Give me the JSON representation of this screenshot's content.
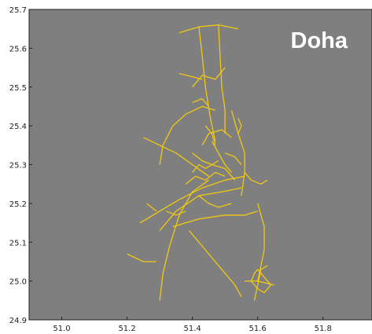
{
  "chart_data": {
    "type": "line",
    "title": "",
    "xlabel": "",
    "ylabel": "",
    "xlim": [
      50.9,
      51.95
    ],
    "ylim": [
      24.9,
      25.7
    ],
    "xticks": [
      51.0,
      51.2,
      51.4,
      51.6,
      51.8
    ],
    "xtick_labels": [
      "51.0",
      "51.2",
      "51.4",
      "51.6",
      "51.8"
    ],
    "yticks": [
      24.9,
      25.0,
      25.1,
      25.2,
      25.3,
      25.4,
      25.5,
      25.6,
      25.7
    ],
    "ytick_labels": [
      "24.9",
      "25.0",
      "25.1",
      "25.2",
      "25.3",
      "25.4",
      "25.5",
      "25.6",
      "25.7"
    ],
    "grid": false,
    "background_color": "#7f7f7f",
    "line_color": "#f2c811",
    "annotation": {
      "text": "Doha",
      "color": "#ffffff",
      "placement": "top-right"
    },
    "series": [
      {
        "values": [
          [
            51.36,
            25.64
          ],
          [
            51.42,
            25.655
          ],
          [
            51.48,
            25.66
          ],
          [
            51.54,
            25.65
          ]
        ]
      },
      {
        "values": [
          [
            51.42,
            25.655
          ],
          [
            51.43,
            25.58
          ],
          [
            51.44,
            25.5
          ],
          [
            51.455,
            25.42
          ],
          [
            51.47,
            25.36
          ]
        ]
      },
      {
        "values": [
          [
            51.48,
            25.66
          ],
          [
            51.485,
            25.58
          ],
          [
            51.49,
            25.5
          ],
          [
            51.5,
            25.44
          ],
          [
            51.5,
            25.38
          ]
        ]
      },
      {
        "values": [
          [
            51.4,
            25.5
          ],
          [
            51.43,
            25.53
          ],
          [
            51.47,
            25.52
          ],
          [
            51.5,
            25.55
          ]
        ]
      },
      {
        "values": [
          [
            51.36,
            25.535
          ],
          [
            51.43,
            25.52
          ]
        ]
      },
      {
        "values": [
          [
            51.4,
            25.46
          ],
          [
            51.43,
            25.47
          ],
          [
            51.45,
            25.45
          ]
        ]
      },
      {
        "values": [
          [
            51.52,
            25.44
          ],
          [
            51.54,
            25.38
          ],
          [
            51.56,
            25.33
          ],
          [
            51.56,
            25.28
          ],
          [
            51.55,
            25.22
          ]
        ]
      },
      {
        "values": [
          [
            51.25,
            25.37
          ],
          [
            51.3,
            25.35
          ],
          [
            51.35,
            25.33
          ],
          [
            51.4,
            25.3
          ],
          [
            51.45,
            25.27
          ]
        ]
      },
      {
        "values": [
          [
            51.24,
            25.15
          ],
          [
            51.3,
            25.18
          ],
          [
            51.36,
            25.21
          ],
          [
            51.43,
            25.24
          ],
          [
            51.5,
            25.26
          ],
          [
            51.56,
            25.27
          ]
        ]
      },
      {
        "values": [
          [
            51.3,
            25.13
          ],
          [
            51.35,
            25.18
          ],
          [
            51.42,
            25.22
          ],
          [
            51.49,
            25.23
          ],
          [
            51.55,
            25.24
          ]
        ]
      },
      {
        "values": [
          [
            51.3,
            24.95
          ],
          [
            51.31,
            25.02
          ],
          [
            51.33,
            25.09
          ],
          [
            51.36,
            25.17
          ],
          [
            51.4,
            25.23
          ],
          [
            51.45,
            25.26
          ]
        ]
      },
      {
        "values": [
          [
            51.3,
            25.3
          ],
          [
            51.31,
            25.35
          ],
          [
            51.34,
            25.4
          ],
          [
            51.38,
            25.43
          ],
          [
            51.43,
            25.45
          ],
          [
            51.47,
            25.44
          ]
        ]
      },
      {
        "values": [
          [
            51.39,
            25.13
          ],
          [
            51.42,
            25.1
          ],
          [
            51.46,
            25.06
          ],
          [
            51.5,
            25.02
          ],
          [
            51.53,
            24.99
          ],
          [
            51.55,
            24.96
          ]
        ]
      },
      {
        "values": [
          [
            51.34,
            25.14
          ],
          [
            51.42,
            25.16
          ],
          [
            51.5,
            25.17
          ],
          [
            51.56,
            25.17
          ],
          [
            51.6,
            25.18
          ]
        ]
      },
      {
        "values": [
          [
            51.6,
            25.2
          ],
          [
            51.62,
            25.14
          ],
          [
            51.62,
            25.08
          ],
          [
            51.61,
            25.04
          ],
          [
            51.6,
            25.0
          ]
        ]
      },
      {
        "values": [
          [
            51.32,
            25.18
          ],
          [
            51.35,
            25.17
          ],
          [
            51.38,
            25.18
          ]
        ]
      },
      {
        "values": [
          [
            51.38,
            25.25
          ],
          [
            51.41,
            25.27
          ],
          [
            51.44,
            25.26
          ],
          [
            51.47,
            25.28
          ],
          [
            51.5,
            25.27
          ]
        ]
      },
      {
        "values": [
          [
            51.4,
            25.33
          ],
          [
            51.43,
            25.31
          ],
          [
            51.46,
            25.3
          ],
          [
            51.5,
            25.29
          ],
          [
            51.53,
            25.26
          ]
        ]
      },
      {
        "values": [
          [
            51.42,
            25.22
          ],
          [
            51.45,
            25.2
          ],
          [
            51.48,
            25.19
          ],
          [
            51.52,
            25.2
          ]
        ]
      },
      {
        "values": [
          [
            51.46,
            25.36
          ],
          [
            51.48,
            25.33
          ],
          [
            51.5,
            25.3
          ],
          [
            51.52,
            25.28
          ]
        ]
      },
      {
        "values": [
          [
            51.43,
            25.35
          ],
          [
            51.45,
            25.38
          ],
          [
            51.49,
            25.39
          ],
          [
            51.52,
            25.37
          ]
        ]
      },
      {
        "values": [
          [
            51.56,
            25.28
          ],
          [
            51.58,
            25.26
          ],
          [
            51.61,
            25.25
          ],
          [
            51.63,
            25.26
          ]
        ]
      },
      {
        "values": [
          [
            51.5,
            25.33
          ],
          [
            51.53,
            25.32
          ],
          [
            51.55,
            25.3
          ]
        ]
      },
      {
        "values": [
          [
            51.44,
            25.4
          ],
          [
            51.46,
            25.38
          ],
          [
            51.47,
            25.35
          ]
        ]
      },
      {
        "values": [
          [
            51.4,
            25.28
          ],
          [
            51.42,
            25.3
          ],
          [
            51.44,
            25.29
          ],
          [
            51.46,
            25.3
          ],
          [
            51.48,
            25.31
          ]
        ]
      },
      {
        "values": [
          [
            51.54,
            25.38
          ],
          [
            51.55,
            25.4
          ],
          [
            51.54,
            25.42
          ]
        ]
      },
      {
        "values": [
          [
            51.26,
            25.2
          ],
          [
            51.29,
            25.18
          ]
        ]
      },
      {
        "values": [
          [
            51.2,
            25.07
          ],
          [
            51.25,
            25.05
          ],
          [
            51.29,
            25.05
          ]
        ]
      },
      {
        "values": [
          [
            51.6,
            25.03
          ],
          [
            51.62,
            25.01
          ],
          [
            51.64,
            24.99
          ],
          [
            51.62,
            24.97
          ],
          [
            51.6,
            24.98
          ],
          [
            51.58,
            25.0
          ],
          [
            51.59,
            25.02
          ],
          [
            51.6,
            25.03
          ]
        ]
      },
      {
        "values": [
          [
            51.59,
            24.95
          ],
          [
            51.6,
            24.99
          ],
          [
            51.61,
            25.03
          ],
          [
            51.63,
            25.04
          ]
        ]
      },
      {
        "values": [
          [
            51.56,
            25.0
          ],
          [
            51.6,
            25.0
          ],
          [
            51.65,
            24.99
          ]
        ]
      }
    ]
  }
}
